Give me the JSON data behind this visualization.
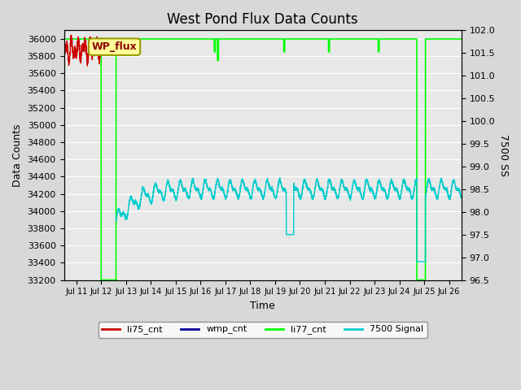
{
  "title": "West Pond Flux Data Counts",
  "xlabel": "Time",
  "ylabel_left": "Data Counts",
  "ylabel_right": "7500 SS",
  "ylim_left": [
    33200,
    36100
  ],
  "ylim_right": [
    96.5,
    102.0
  ],
  "yticks_left": [
    33200,
    33400,
    33600,
    33800,
    34000,
    34200,
    34400,
    34600,
    34800,
    35000,
    35200,
    35400,
    35600,
    35800,
    36000
  ],
  "yticks_right": [
    96.5,
    97.0,
    97.5,
    98.0,
    98.5,
    99.0,
    99.5,
    100.0,
    100.5,
    101.0,
    101.5,
    102.0
  ],
  "xtick_positions": [
    1,
    2,
    3,
    4,
    5,
    6,
    7,
    8,
    9,
    10,
    11,
    12,
    13,
    14,
    15,
    16
  ],
  "xtick_labels": [
    "Jul 11",
    "Jul 12",
    "Jul 13",
    "Jul 14",
    "Jul 15",
    "Jul 16",
    "Jul 17",
    "Jul 18",
    "Jul 19",
    "Jul 20",
    "Jul 21",
    "Jul 22",
    "Jul 23",
    "Jul 24",
    "Jul 25",
    "Jul 26"
  ],
  "xlim": [
    0.5,
    16.5
  ],
  "fig_bg_color": "#d8d8d8",
  "plot_bg_color": "#e8e8e8",
  "annotation_box_color": "#ffff99",
  "annotation_text_color": "#8b0000",
  "annotation_text": "WP_flux",
  "li77_color": "#00ff00",
  "li75_color": "#cc0000",
  "wmp_color": "#000099",
  "signal_color": "#00cccc",
  "title_fontsize": 12,
  "axis_label_fontsize": 9,
  "tick_fontsize": 8
}
